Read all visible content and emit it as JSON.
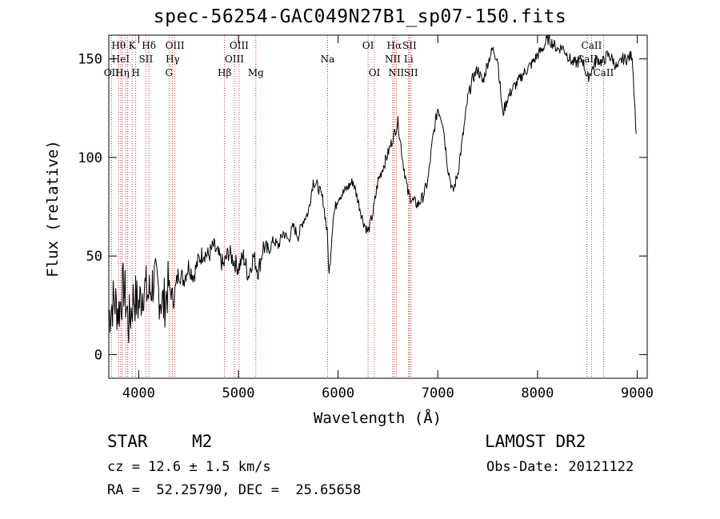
{
  "chart_data": {
    "type": "line",
    "title": "spec-56254-GAC049N27B1_sp07-150.fits",
    "xlabel": "Wavelength (Å)",
    "ylabel": "Flux (relative)",
    "xlim": [
      3700,
      9100
    ],
    "ylim": [
      -12,
      162
    ],
    "x_ticks": [
      4000,
      5000,
      6000,
      7000,
      8000,
      9000
    ],
    "y_ticks": [
      0,
      50,
      100,
      150
    ],
    "x_tick_labels": [
      "4000",
      "5000",
      "6000",
      "7000",
      "8000",
      "9000"
    ],
    "y_tick_labels": [
      "0",
      "50",
      "100",
      "150"
    ],
    "grid": false,
    "series": [
      {
        "x": [
          3700,
          3750,
          3800,
          3850,
          3900,
          3950,
          4000,
          4050,
          4100,
          4150,
          4200,
          4250,
          4300,
          4350,
          4400,
          4450,
          4500,
          4550,
          4600,
          4650,
          4700,
          4750,
          4800,
          4850,
          4900,
          4950,
          5000,
          5050,
          5100,
          5150,
          5200,
          5250,
          5300,
          5350,
          5400,
          5450,
          5500,
          5550,
          5600,
          5650,
          5700,
          5750,
          5800,
          5850,
          5890,
          5910,
          5950,
          6000,
          6050,
          6100,
          6150,
          6200,
          6250,
          6300,
          6350,
          6400,
          6450,
          6500,
          6550,
          6600,
          6650,
          6700,
          6750,
          6800,
          6850,
          6900,
          6950,
          7000,
          7050,
          7100,
          7150,
          7200,
          7250,
          7300,
          7350,
          7400,
          7450,
          7500,
          7550,
          7600,
          7650,
          7700,
          7750,
          7800,
          7850,
          7900,
          7950,
          8000,
          8050,
          8100,
          8150,
          8200,
          8250,
          8300,
          8350,
          8400,
          8450,
          8500,
          8550,
          8600,
          8650,
          8700,
          8750,
          8800,
          8850,
          8900,
          8950,
          8990
        ],
        "y": [
          20,
          28,
          22,
          35,
          15,
          30,
          25,
          35,
          30,
          38,
          32,
          25,
          35,
          28,
          42,
          38,
          45,
          40,
          48,
          52,
          50,
          55,
          50,
          45,
          52,
          48,
          44,
          50,
          40,
          50,
          42,
          55,
          52,
          58,
          55,
          62,
          58,
          65,
          60,
          68,
          72,
          88,
          85,
          78,
          62,
          40,
          70,
          80,
          82,
          85,
          88,
          78,
          68,
          62,
          72,
          88,
          95,
          102,
          110,
          118,
          98,
          82,
          78,
          76,
          80,
          88,
          110,
          125,
          118,
          95,
          82,
          92,
          110,
          130,
          140,
          145,
          138,
          148,
          155,
          150,
          122,
          130,
          135,
          138,
          142,
          145,
          148,
          152,
          155,
          160,
          158,
          155,
          156,
          152,
          148,
          148,
          150,
          140,
          145,
          150,
          148,
          152,
          150,
          145,
          150,
          150,
          152,
          112
        ]
      }
    ],
    "line_markers": [
      {
        "wave": 3727,
        "label": "OII",
        "row": 2
      },
      {
        "wave": 3798,
        "label": "Hθ",
        "row": 0
      },
      {
        "wave": 3820,
        "label": "HeI",
        "row": 1
      },
      {
        "wave": 3835,
        "label": "Hη",
        "row": 2
      },
      {
        "wave": 3869,
        "label": "",
        "row": 1
      },
      {
        "wave": 3889,
        "label": "",
        "row": 0
      },
      {
        "wave": 3934,
        "label": "K",
        "row": 0
      },
      {
        "wave": 3970,
        "label": "H",
        "row": 2
      },
      {
        "wave": 4072,
        "label": "SII",
        "row": 1
      },
      {
        "wave": 4102,
        "label": "Hδ",
        "row": 0
      },
      {
        "wave": 4304,
        "label": "G",
        "row": 2
      },
      {
        "wave": 4340,
        "label": "Hγ",
        "row": 1
      },
      {
        "wave": 4363,
        "label": "OIII",
        "row": 0
      },
      {
        "wave": 4861,
        "label": "Hβ",
        "row": 2
      },
      {
        "wave": 4959,
        "label": "OIII",
        "row": 1
      },
      {
        "wave": 5007,
        "label": "OIII",
        "row": 0
      },
      {
        "wave": 5175,
        "label": "Mg",
        "row": 2
      },
      {
        "wave": 5894,
        "label": "Na",
        "row": 1
      },
      {
        "wave": 6300,
        "label": "OI",
        "row": 0
      },
      {
        "wave": 6364,
        "label": "OI",
        "row": 2
      },
      {
        "wave": 6548,
        "label": "NII",
        "row": 1
      },
      {
        "wave": 6563,
        "label": "Hα",
        "row": 0
      },
      {
        "wave": 6583,
        "label": "NII",
        "row": 2
      },
      {
        "wave": 6707,
        "label": "Li",
        "row": 1
      },
      {
        "wave": 6716,
        "label": "SII",
        "row": 0
      },
      {
        "wave": 6731,
        "label": "SII",
        "row": 2
      },
      {
        "wave": 8498,
        "label": "CaII",
        "row": 1
      },
      {
        "wave": 8542,
        "label": "CaII",
        "row": 0
      },
      {
        "wave": 8662,
        "label": "CaII",
        "row": 2
      }
    ]
  },
  "info": {
    "object_type": "STAR",
    "subclass": "M2",
    "survey": "LAMOST DR2",
    "cz": "cz = 12.6 ± 1.5 km/s",
    "obs_date": "Obs-Date: 20121122",
    "coords": "RA =  52.25790, DEC =  25.65658"
  },
  "colors": {
    "axis": "#000000",
    "spectrum": "#000000",
    "line_marker": "#cc0000"
  }
}
